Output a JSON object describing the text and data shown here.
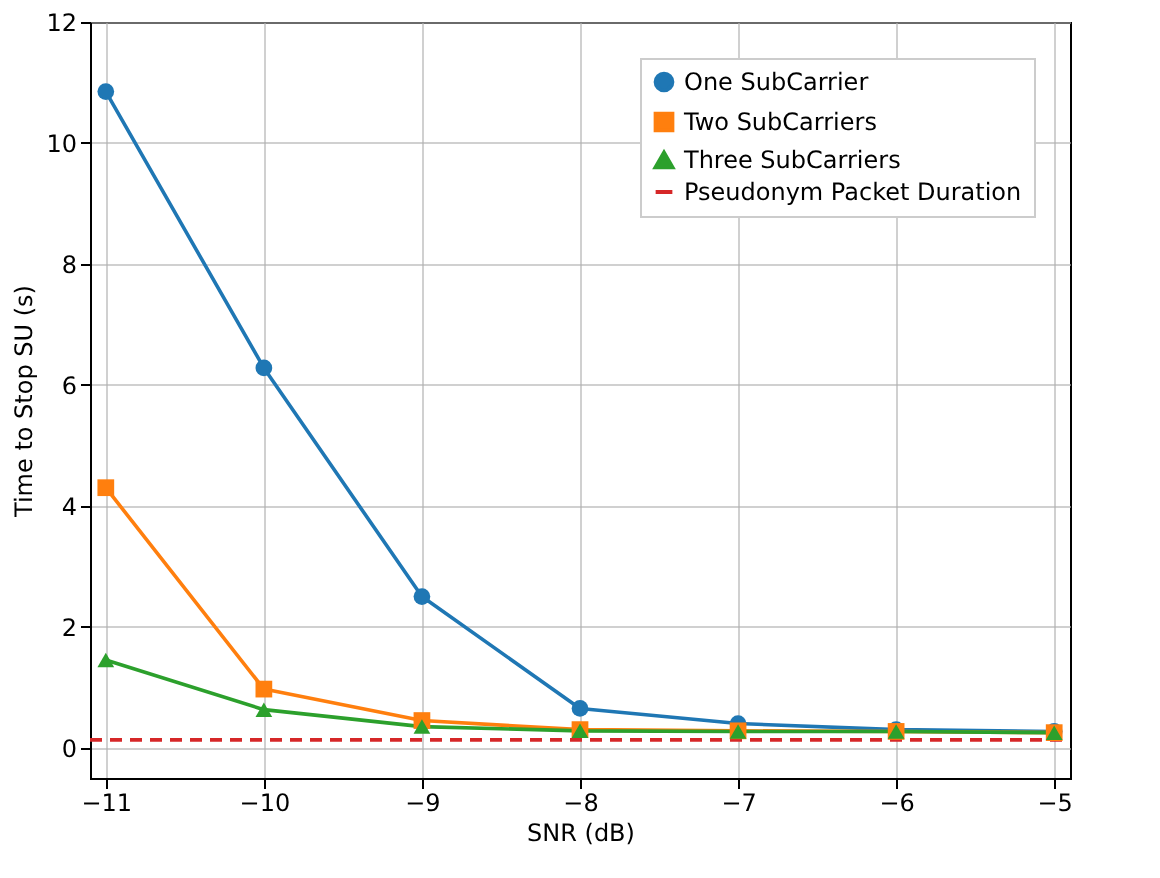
{
  "chart_data": {
    "type": "line",
    "xlabel": "SNR (dB)",
    "ylabel": "Time to Stop SU (s)",
    "x": [
      -11,
      -10,
      -9,
      -8,
      -7,
      -6,
      -5
    ],
    "series": [
      {
        "name": "One SubCarrier",
        "color": "#1f77b4",
        "marker": "circle",
        "values": [
          10.85,
          6.28,
          2.5,
          0.65,
          0.4,
          0.3,
          0.27
        ]
      },
      {
        "name": "Two SubCarriers",
        "color": "#ff7f0e",
        "marker": "square",
        "values": [
          4.3,
          0.97,
          0.45,
          0.3,
          0.28,
          0.27,
          0.25
        ]
      },
      {
        "name": "Three SubCarriers",
        "color": "#2ca02c",
        "marker": "triangle",
        "values": [
          1.45,
          0.63,
          0.35,
          0.28,
          0.27,
          0.27,
          0.25
        ]
      }
    ],
    "ref_lines": [
      {
        "axis": "y",
        "value": 0.13,
        "label": "Pseudonym Packet Duration",
        "color": "#d62728",
        "line_style": "dashed"
      }
    ],
    "xlim": [
      -11.1,
      -4.9
    ],
    "xticks": [
      -11,
      -10,
      -9,
      -8,
      -7,
      -6,
      -5
    ],
    "ylim": [
      -0.5,
      12
    ],
    "yticks": [
      0,
      2,
      4,
      6,
      8,
      10,
      12
    ],
    "grid": true,
    "legend": "top right",
    "line_style": "solid"
  }
}
